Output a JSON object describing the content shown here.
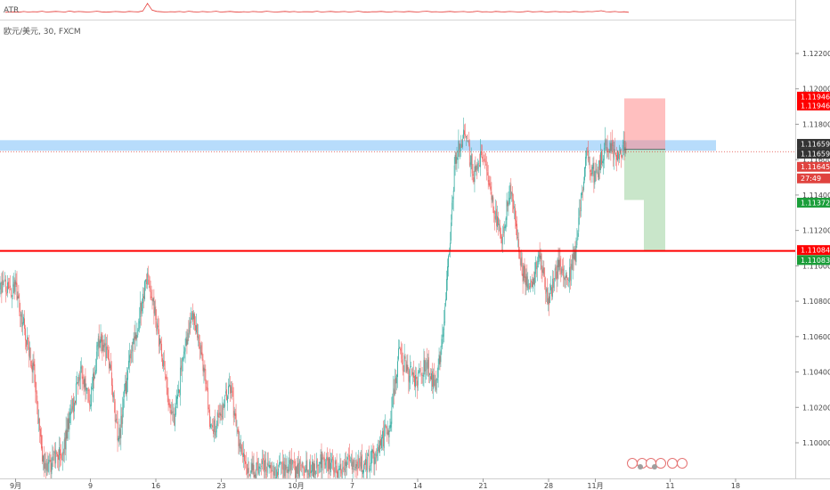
{
  "header": {
    "indicator_label": "ATR",
    "symbol_line": "欧元/美元, 30, FXCM"
  },
  "price_tags": [
    {
      "label": "1.11946",
      "color": "#ff0000"
    },
    {
      "label": "1.11946",
      "color": "#ff0000"
    },
    {
      "label": "1.11659",
      "color": "#333333"
    },
    {
      "label": "1.11659",
      "color": "#333333"
    },
    {
      "label": "1.11645",
      "color": "#e0433f"
    },
    {
      "label": "27:49",
      "color": "#e0433f"
    },
    {
      "label": "1.11372",
      "color": "#1b9e3a"
    },
    {
      "label": "1.11084",
      "color": "#ff0000"
    },
    {
      "label": "1.11083",
      "color": "#1b9e3a"
    }
  ],
  "colors": {
    "up": "#26a69a",
    "down": "#ef5350",
    "support_line": "#ff0000",
    "zone": "#90caf9",
    "atr": "#e53935"
  },
  "chart_data": {
    "type": "candlestick",
    "title": "欧元/美元, 30, FXCM",
    "x_tick_labels": [
      "9月",
      "9",
      "16",
      "23",
      "10月",
      "7",
      "14",
      "21",
      "28",
      "11月",
      "11",
      "18"
    ],
    "y_tick_labels": [
      "1.12200",
      "1.12000",
      "1.11800",
      "1.11600",
      "1.11400",
      "1.11200",
      "1.11000",
      "1.10800",
      "1.10600",
      "1.10400",
      "1.10200",
      "1.10000"
    ],
    "ylim": [
      1.0983,
      1.1245
    ],
    "resistance_zone": [
      1.1165,
      1.1171
    ],
    "support_line": 1.11084,
    "last_price": 1.11645,
    "position": {
      "entry": 1.11659,
      "stop": 1.11946,
      "target": 1.11083,
      "partial_target": 1.11372
    },
    "price_path": [
      {
        "x": "Sep 1",
        "y": 1.1088
      },
      {
        "x": "Sep 3",
        "y": 1.1037
      },
      {
        "x": "Sep 4",
        "y": 1.0985
      },
      {
        "x": "Sep 5",
        "y": 1.099
      },
      {
        "x": "Sep 6",
        "y": 1.0995
      },
      {
        "x": "Sep 8",
        "y": 1.104
      },
      {
        "x": "Sep 9",
        "y": 1.1025
      },
      {
        "x": "Sep 10",
        "y": 1.106
      },
      {
        "x": "Sep 11",
        "y": 1.1045
      },
      {
        "x": "Sep 12",
        "y": 1.1
      },
      {
        "x": "Sep 13",
        "y": 1.104
      },
      {
        "x": "Sep 14",
        "y": 1.1065
      },
      {
        "x": "Sep 15",
        "y": 1.1095
      },
      {
        "x": "Sep 16",
        "y": 1.107
      },
      {
        "x": "Sep 17",
        "y": 1.1035
      },
      {
        "x": "Sep 18",
        "y": 1.101
      },
      {
        "x": "Sep 19",
        "y": 1.1055
      },
      {
        "x": "Sep 20",
        "y": 1.107
      },
      {
        "x": "Sep 21",
        "y": 1.1045
      },
      {
        "x": "Sep 22",
        "y": 1.1005
      },
      {
        "x": "Sep 24",
        "y": 1.103
      },
      {
        "x": "Sep 25",
        "y": 1.0995
      },
      {
        "x": "Sep 26",
        "y": 1.0985
      },
      {
        "x": "Oct 3",
        "y": 1.0985
      },
      {
        "x": "Oct 4",
        "y": 1.099
      },
      {
        "x": "Oct 5",
        "y": 1.0985
      },
      {
        "x": "Oct 9",
        "y": 1.099
      },
      {
        "x": "Oct 11",
        "y": 1.101
      },
      {
        "x": "Oct 12",
        "y": 1.105
      },
      {
        "x": "Oct 13",
        "y": 1.104
      },
      {
        "x": "Oct 14",
        "y": 1.1035
      },
      {
        "x": "Oct 15",
        "y": 1.1045
      },
      {
        "x": "Oct 16",
        "y": 1.103
      },
      {
        "x": "Oct 17",
        "y": 1.108
      },
      {
        "x": "Oct 18",
        "y": 1.116
      },
      {
        "x": "Oct 19",
        "y": 1.1175
      },
      {
        "x": "Oct 20",
        "y": 1.115
      },
      {
        "x": "Oct 21",
        "y": 1.1165
      },
      {
        "x": "Oct 22",
        "y": 1.1135
      },
      {
        "x": "Oct 23",
        "y": 1.1118
      },
      {
        "x": "Oct 24",
        "y": 1.1145
      },
      {
        "x": "Oct 25",
        "y": 1.11
      },
      {
        "x": "Oct 26",
        "y": 1.1085
      },
      {
        "x": "Oct 27",
        "y": 1.1105
      },
      {
        "x": "Oct 28",
        "y": 1.108
      },
      {
        "x": "Oct 29",
        "y": 1.11
      },
      {
        "x": "Oct 30",
        "y": 1.109
      },
      {
        "x": "Oct 31",
        "y": 1.111
      },
      {
        "x": "Nov 1",
        "y": 1.1165
      },
      {
        "x": "Nov 2",
        "y": 1.115
      },
      {
        "x": "Nov 3",
        "y": 1.1168
      },
      {
        "x": "Nov 4",
        "y": 1.1164
      }
    ],
    "atr_relative": [
      0.28,
      0.3,
      0.31,
      0.29,
      0.34,
      0.3,
      0.33,
      0.31,
      0.36,
      0.3,
      0.32,
      0.35,
      0.33,
      0.3,
      0.37,
      0.31,
      0.34,
      0.32,
      0.3,
      0.33,
      0.36,
      0.31,
      0.29,
      0.31,
      0.34,
      0.32,
      0.3,
      0.35,
      0.33,
      0.31,
      0.38,
      0.95,
      0.45,
      0.35,
      0.32,
      0.3,
      0.33,
      0.31,
      0.34,
      0.3,
      0.36,
      0.32,
      0.3,
      0.34,
      0.31,
      0.33,
      0.36,
      0.3,
      0.32,
      0.35,
      0.31,
      0.29,
      0.33,
      0.3,
      0.34,
      0.32,
      0.31,
      0.36,
      0.33,
      0.3,
      0.32,
      0.35,
      0.31,
      0.34,
      0.3,
      0.33,
      0.32,
      0.31,
      0.36,
      0.3,
      0.33,
      0.35,
      0.31,
      0.32,
      0.34,
      0.3,
      0.33,
      0.36,
      0.31,
      0.29,
      0.33,
      0.32,
      0.35,
      0.31,
      0.3,
      0.34,
      0.33,
      0.31,
      0.35,
      0.32,
      0.3,
      0.34,
      0.36,
      0.31,
      0.33,
      0.3,
      0.32,
      0.35,
      0.31,
      0.33,
      0.34,
      0.3,
      0.32,
      0.36,
      0.31,
      0.33,
      0.3,
      0.35,
      0.32,
      0.31,
      0.34,
      0.33,
      0.3,
      0.32,
      0.36,
      0.31,
      0.33,
      0.35,
      0.3,
      0.32,
      0.34,
      0.31,
      0.33,
      0.3,
      0.35,
      0.32,
      0.31,
      0.34,
      0.33,
      0.36,
      0.4,
      0.33,
      0.31,
      0.34,
      0.3,
      0.32,
      0.28
    ]
  }
}
